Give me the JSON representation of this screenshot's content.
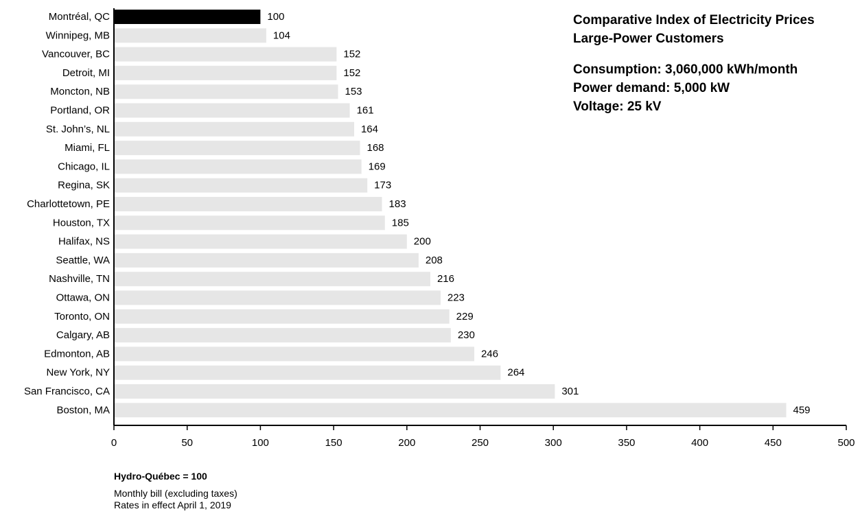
{
  "chart_data": {
    "type": "bar",
    "orientation": "horizontal",
    "categories": [
      "Montréal, QC",
      "Winnipeg, MB",
      "Vancouver, BC",
      "Detroit, MI",
      "Moncton, NB",
      "Portland, OR",
      "St. John’s, NL",
      "Miami, FL",
      "Chicago, IL",
      "Regina, SK",
      "Charlottetown, PE",
      "Houston, TX",
      "Halifax, NS",
      "Seattle, WA",
      "Nashville, TN",
      "Ottawa, ON",
      "Toronto, ON",
      "Calgary, AB",
      "Edmonton, AB",
      "New York, NY",
      "San Francisco, CA",
      "Boston, MA"
    ],
    "values": [
      100,
      104,
      152,
      152,
      153,
      161,
      164,
      168,
      169,
      173,
      183,
      185,
      200,
      208,
      216,
      223,
      229,
      230,
      246,
      264,
      301,
      459
    ],
    "xlim": [
      0,
      500
    ],
    "xticks": [
      "0",
      "50",
      "100",
      "150",
      "200",
      "250",
      "300",
      "350",
      "400",
      "450",
      "500"
    ],
    "highlight_category": "Montréal, QC",
    "colors": {
      "highlight": "#000000",
      "bar": "#e6e6e6",
      "axis": "#000000"
    },
    "grid": false,
    "legend": "none"
  },
  "title": {
    "line1": "Comparative Index of Electricity Prices",
    "line2": "Large-Power Customers"
  },
  "specs": {
    "consumption": "Consumption: 3,060,000 kWh/month",
    "demand": "Power demand: 5,000 kW",
    "voltage": "Voltage: 25 kV"
  },
  "notes": {
    "base": "Hydro-Québec = 100",
    "line1": "Monthly bill (excluding taxes)",
    "line2": "Rates in effect April 1, 2019"
  }
}
